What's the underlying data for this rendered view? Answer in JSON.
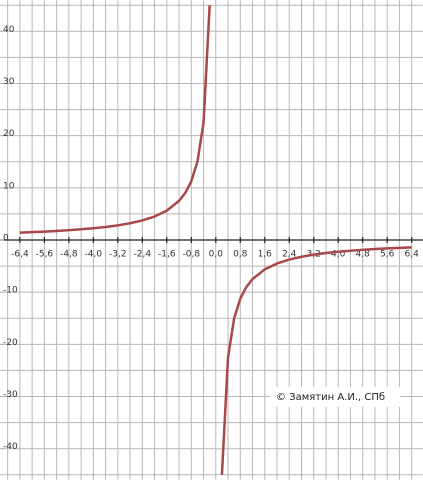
{
  "chart_data": {
    "type": "line",
    "annotation": "© Замятин А.И., СПб",
    "x": [
      -6.4,
      -6.0,
      -5.6,
      -5.2,
      -4.8,
      -4.4,
      -4.0,
      -3.6,
      -3.2,
      -2.8,
      -2.4,
      -2.0,
      -1.6,
      -1.2,
      -1.0,
      -0.8,
      -0.6,
      -0.4,
      -0.2,
      0,
      0.2,
      0.4,
      0.6,
      0.8,
      1.0,
      1.2,
      1.6,
      2.0,
      2.4,
      2.8,
      3.2,
      3.6,
      4.0,
      4.4,
      4.8,
      5.2,
      5.6,
      6.0,
      6.4
    ],
    "series": [
      {
        "color": "#a84848",
        "values": [
          1.41,
          1.5,
          1.61,
          1.73,
          1.88,
          2.05,
          2.25,
          2.5,
          2.81,
          3.21,
          3.75,
          4.5,
          5.63,
          7.5,
          9,
          11.25,
          15,
          22.5,
          45,
          null,
          -45,
          -22.5,
          -15,
          -11.25,
          -9,
          -7.5,
          -5.63,
          -4.5,
          -3.75,
          -3.21,
          -2.81,
          -2.5,
          -2.25,
          -2.05,
          -1.88,
          -1.73,
          -1.61,
          -1.5,
          -1.41
        ]
      }
    ],
    "xlim": [
      -7.05,
      6.77
    ],
    "ylim": [
      -46,
      46
    ],
    "xticks": [
      {
        "value": -6.4,
        "label": "-6,4"
      },
      {
        "value": -5.6,
        "label": "-5,6"
      },
      {
        "value": -4.8,
        "label": "-4,8"
      },
      {
        "value": -4.0,
        "label": "-4,0"
      },
      {
        "value": -3.2,
        "label": "-3,2"
      },
      {
        "value": -2.4,
        "label": "-2,4"
      },
      {
        "value": -1.6,
        "label": "-1,6"
      },
      {
        "value": -0.8,
        "label": "-0,8"
      },
      {
        "value": 0,
        "label": "0,0"
      },
      {
        "value": 0.8,
        "label": "0,8"
      },
      {
        "value": 1.6,
        "label": "1,6"
      },
      {
        "value": 2.4,
        "label": "2,4"
      },
      {
        "value": 3.2,
        "label": "3,2"
      },
      {
        "value": 4.0,
        "label": "4,0"
      },
      {
        "value": 4.8,
        "label": "4,8"
      },
      {
        "value": 5.6,
        "label": "5,6"
      },
      {
        "value": 6.4,
        "label": "6,4"
      }
    ],
    "yticks": [
      -40,
      -30,
      -20,
      -10,
      0,
      10,
      20,
      30,
      40
    ],
    "grid": true
  }
}
